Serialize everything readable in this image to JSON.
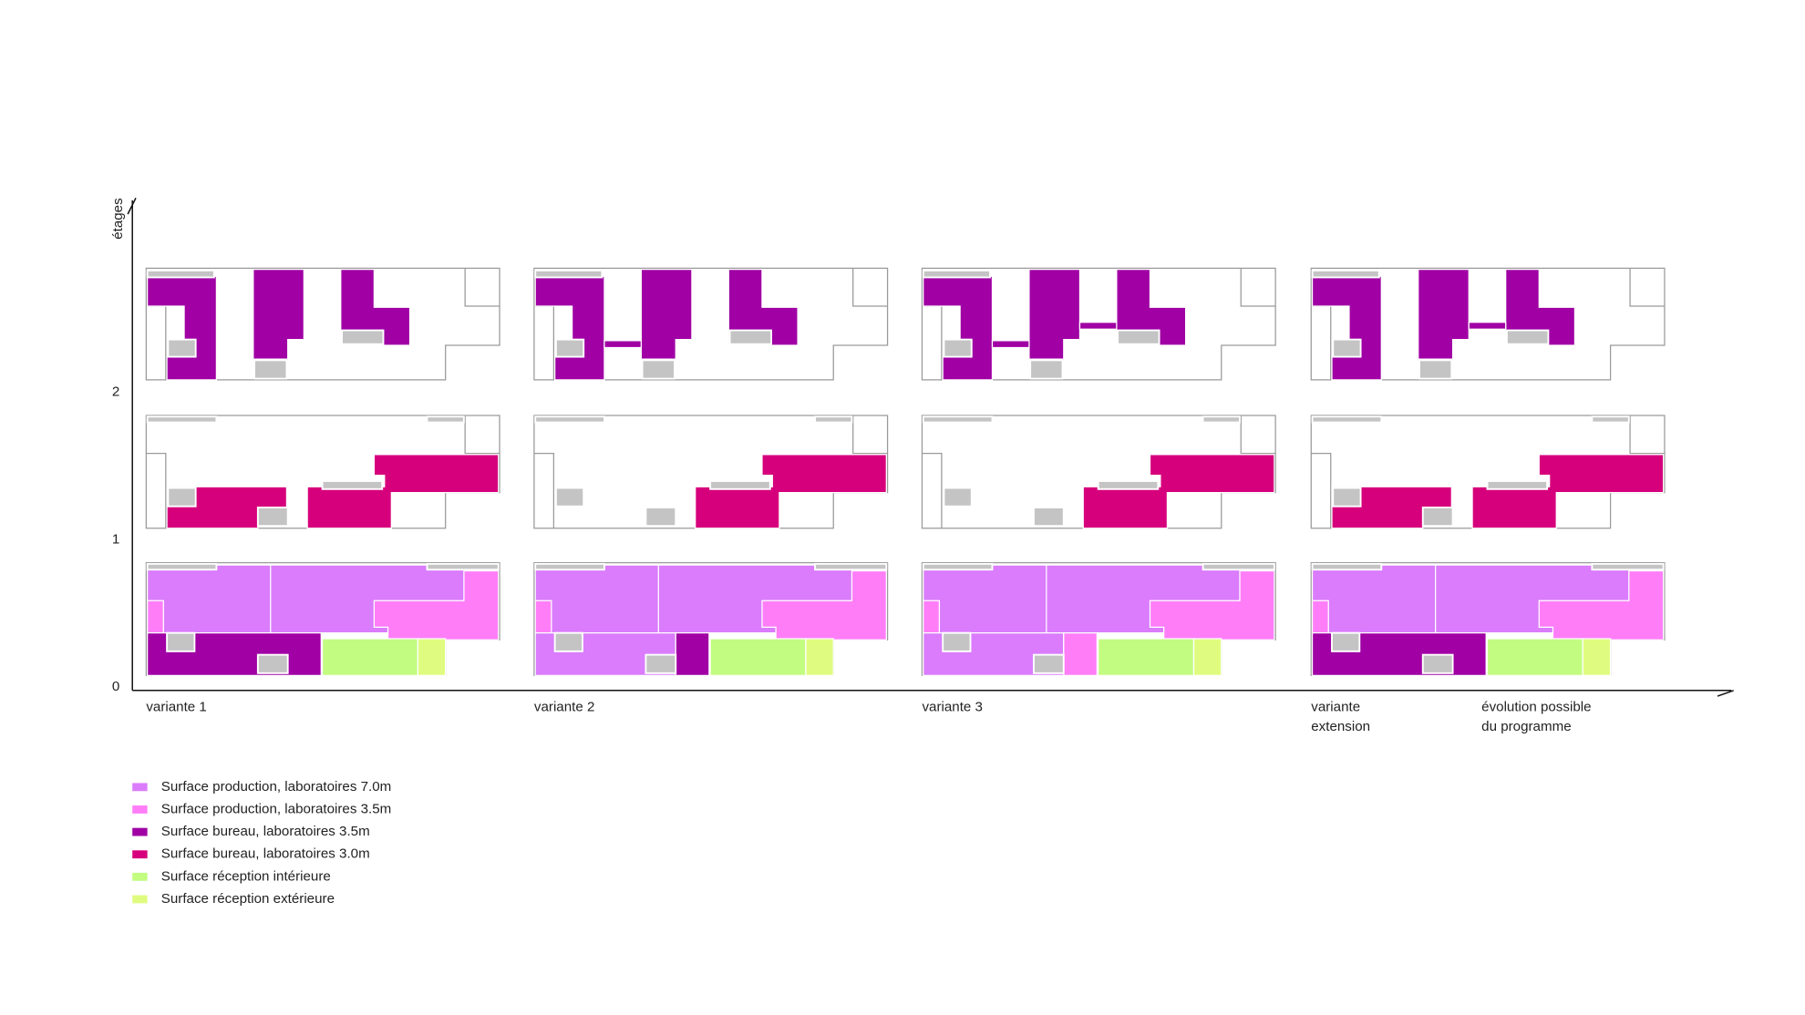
{
  "axis": {
    "label": "étages",
    "ticks": [
      "0",
      "1",
      "2"
    ]
  },
  "variants": [
    {
      "lines": [
        "variante 1"
      ]
    },
    {
      "lines": [
        "variante 2"
      ]
    },
    {
      "lines": [
        "variante 3"
      ]
    },
    {
      "lines": [
        "variante",
        "extension"
      ]
    },
    {
      "lines": [
        "évolution possible",
        "du programme"
      ]
    }
  ],
  "legend": [
    {
      "label": "Surface production, laboratoires 7.0m",
      "color": "#da7cfc"
    },
    {
      "label": "Surface production, laboratoires 3.5m",
      "color": "#ff7ef8"
    },
    {
      "label": "Surface bureau, laboratoires 3.5m",
      "color": "#a000a4"
    },
    {
      "label": "Surface bureau, laboratoires 3.0m",
      "color": "#d6007c"
    },
    {
      "label": "Surface réception intérieure",
      "color": "#c2fc80"
    },
    {
      "label": "Surface réception extérieure",
      "color": "#e0fc80"
    }
  ]
}
